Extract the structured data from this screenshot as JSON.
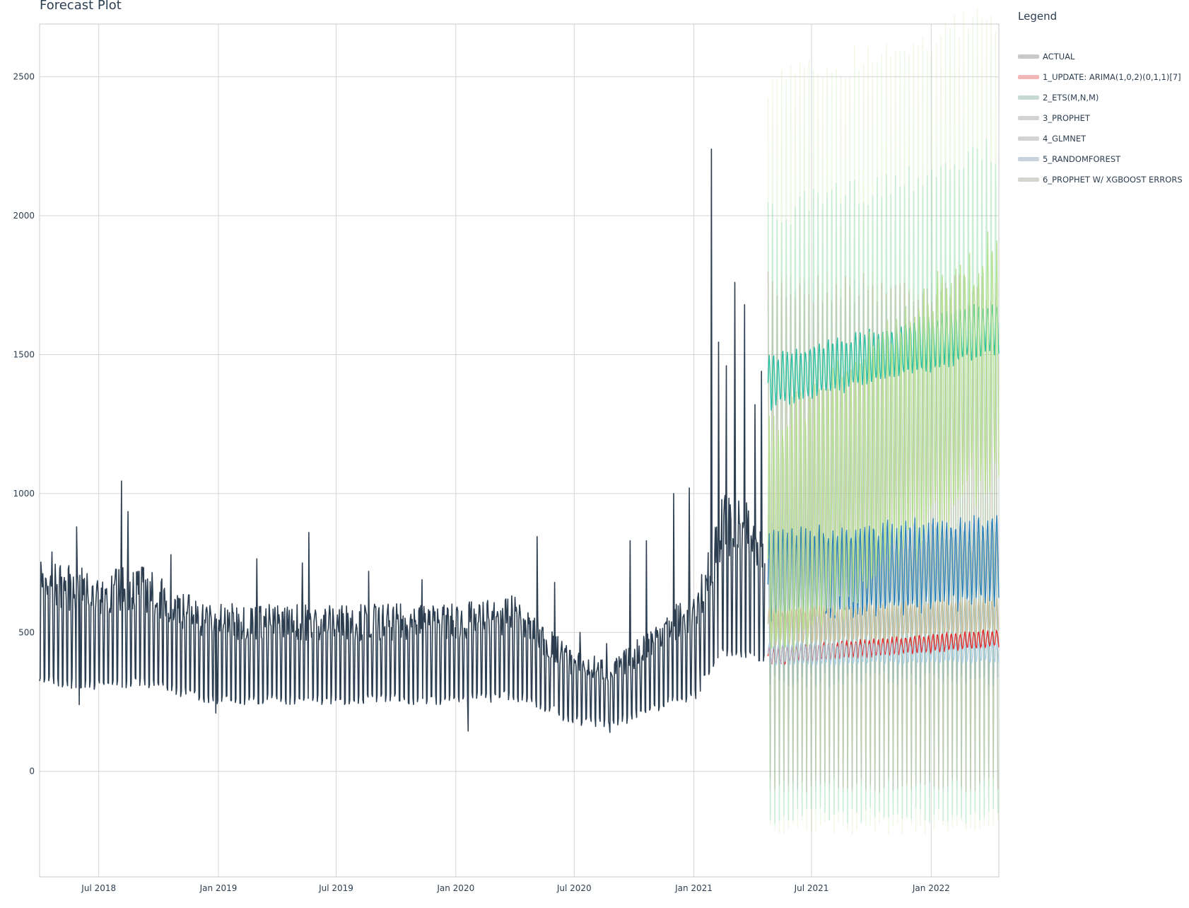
{
  "chart_data": {
    "type": "line",
    "title": "Forecast Plot",
    "legend_title": "Legend",
    "legend_position": "right",
    "grid": true,
    "x_type": "date",
    "xlim": [
      "2018-04-01",
      "2022-04-15"
    ],
    "ylim": [
      -380,
      2690
    ],
    "x_ticks": [
      {
        "date": "2018-07-01",
        "label": "Jul 2018"
      },
      {
        "date": "2019-01-01",
        "label": "Jan 2019"
      },
      {
        "date": "2019-07-01",
        "label": "Jul 2019"
      },
      {
        "date": "2020-01-01",
        "label": "Jan 2020"
      },
      {
        "date": "2020-07-01",
        "label": "Jul 2020"
      },
      {
        "date": "2021-01-01",
        "label": "Jan 2021"
      },
      {
        "date": "2021-07-01",
        "label": "Jul 2021"
      },
      {
        "date": "2022-01-01",
        "label": "Jan 2022"
      }
    ],
    "y_ticks": [
      0,
      500,
      1000,
      1500,
      2000,
      2500
    ],
    "series": [
      {
        "name": "ACTUAL",
        "color": "#2c3e50",
        "baseline": [
          [
            "2018-04-01",
            530
          ],
          [
            "2018-07-01",
            500
          ],
          [
            "2018-09-01",
            520
          ],
          [
            "2018-12-20",
            420
          ],
          [
            "2019-01-15",
            420
          ],
          [
            "2019-07-01",
            420
          ],
          [
            "2020-01-01",
            420
          ],
          [
            "2020-04-01",
            440
          ],
          [
            "2020-07-01",
            300
          ],
          [
            "2020-09-01",
            280
          ],
          [
            "2020-12-01",
            420
          ],
          [
            "2021-01-01",
            430
          ],
          [
            "2021-02-15",
            700
          ],
          [
            "2021-04-20",
            650
          ]
        ],
        "peaks": [
          [
            "2018-04-20",
            790
          ],
          [
            "2018-05-28",
            880
          ],
          [
            "2018-06-30",
            640
          ],
          [
            "2018-08-05",
            1045
          ],
          [
            "2018-08-15",
            935
          ],
          [
            "2018-10-20",
            780
          ],
          [
            "2019-03-01",
            765
          ],
          [
            "2019-05-10",
            750
          ],
          [
            "2019-05-20",
            860
          ],
          [
            "2019-08-20",
            720
          ],
          [
            "2019-11-10",
            690
          ],
          [
            "2020-05-05",
            845
          ],
          [
            "2020-06-01",
            680
          ],
          [
            "2020-07-10",
            500
          ],
          [
            "2020-08-20",
            460
          ],
          [
            "2020-09-25",
            830
          ],
          [
            "2020-10-20",
            830
          ],
          [
            "2020-12-01",
            1000
          ],
          [
            "2020-12-25",
            1020
          ],
          [
            "2021-01-28",
            2240
          ],
          [
            "2021-02-08",
            1545
          ],
          [
            "2021-02-20",
            1460
          ],
          [
            "2021-03-05",
            1760
          ],
          [
            "2021-03-20",
            1680
          ],
          [
            "2021-04-05",
            1320
          ],
          [
            "2021-04-15",
            1440
          ]
        ],
        "troughs": [
          [
            "2018-06-01",
            240
          ],
          [
            "2018-12-28",
            210
          ],
          [
            "2020-01-20",
            145
          ],
          [
            "2020-08-25",
            140
          ],
          [
            "2021-01-10",
            380
          ]
        ]
      },
      {
        "name": "1_UPDATE: ARIMA(1,0,2)(0,1,1)[7]",
        "color": "#e31a1c",
        "line": [
          [
            "2021-04-25",
            415
          ],
          [
            "2022-04-15",
            480
          ]
        ],
        "amplitude": 30,
        "band": [
          -80,
          1800
        ]
      },
      {
        "name": "2_ETS(M,N,M)",
        "color": "#18bc9c",
        "line": [
          [
            "2021-04-25",
            1400
          ],
          [
            "2022-04-15",
            1600
          ]
        ],
        "amplitude": 90,
        "band": [
          -190,
          2050
        ]
      },
      {
        "name": "3_PROPHET",
        "color": "#ccbe93",
        "line": [
          [
            "2021-04-25",
            520
          ],
          [
            "2022-04-15",
            560
          ]
        ],
        "amplitude": 60,
        "band": [
          -80,
          1800
        ]
      },
      {
        "name": "4_GLMNET",
        "color": "#a6cee3",
        "line": [
          [
            "2021-04-25",
            420
          ],
          [
            "2022-04-15",
            430
          ]
        ],
        "amplitude": 35,
        "band": [
          -80,
          1780
        ]
      },
      {
        "name": "5_RANDOMFOREST",
        "color": "#1f78b4",
        "line": [
          [
            "2021-04-25",
            700
          ],
          [
            "2022-04-15",
            760
          ]
        ],
        "amplitude": 150,
        "band": [
          300,
          900
        ]
      },
      {
        "name": "6_PROPHET W/ XGBOOST ERRORS",
        "color": "#b2df8a",
        "line": [
          [
            "2021-04-25",
            800
          ],
          [
            "2022-04-15",
            1500
          ]
        ],
        "amplitude": 420,
        "band": [
          -230,
          2530
        ]
      }
    ],
    "legend_swatches": [
      "#c9c9c9",
      "#f2b8b8",
      "#c7d9d3",
      "#d3d3d1",
      "#d1d3d5",
      "#c8d3dd",
      "#d3d6cf"
    ]
  }
}
